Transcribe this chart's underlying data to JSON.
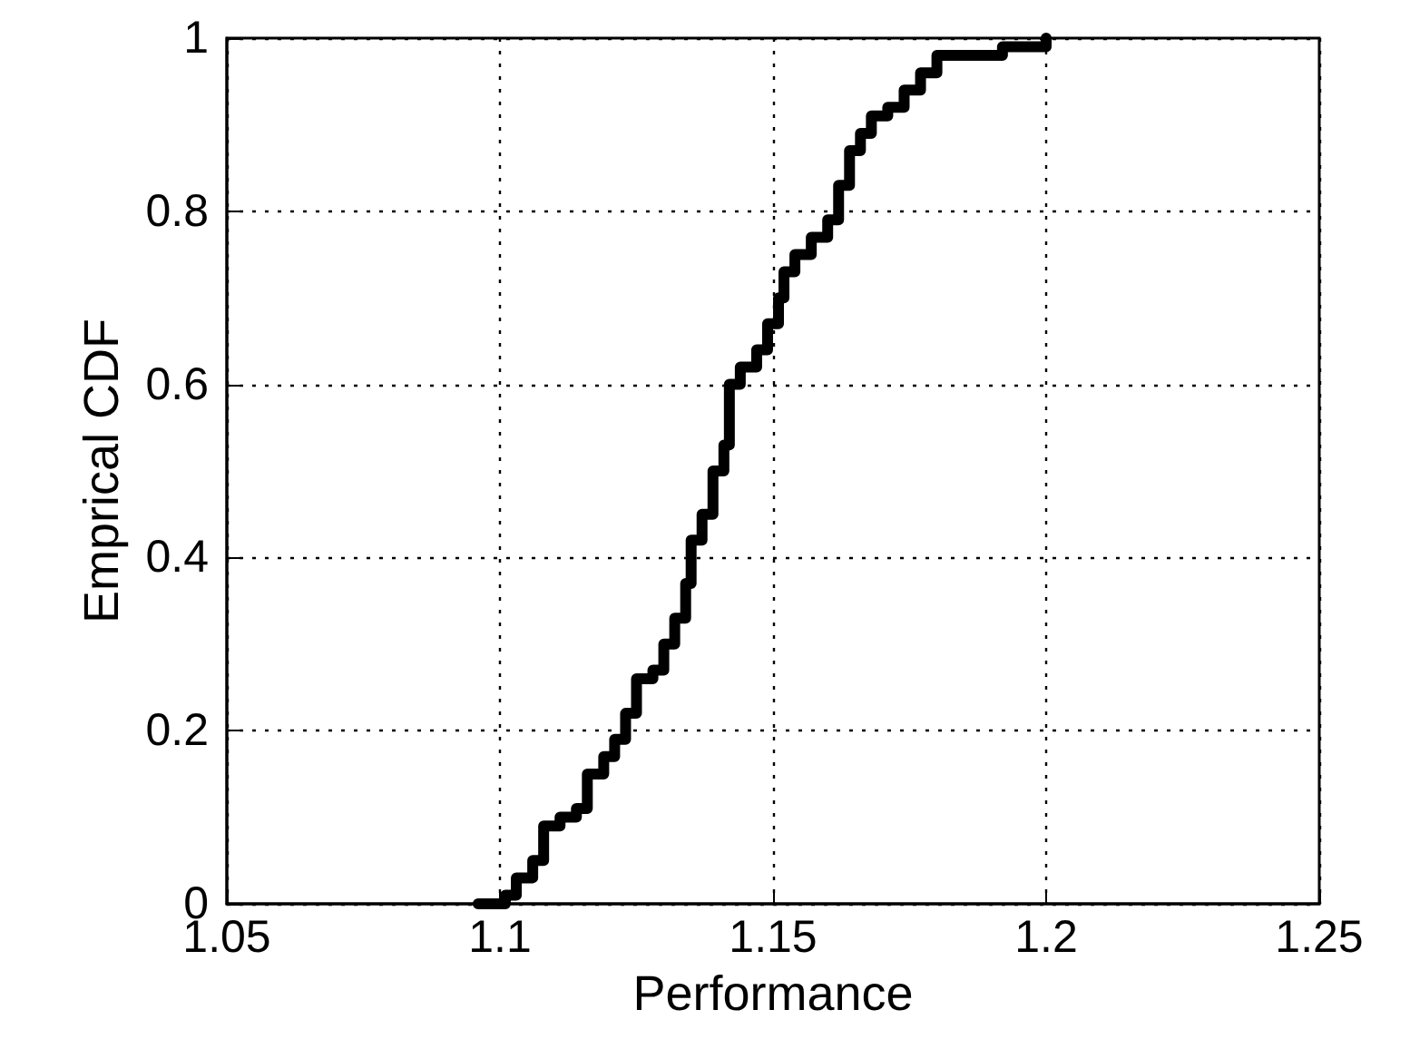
{
  "chart_data": {
    "type": "step",
    "xlabel": "Performance",
    "ylabel": "Emprical CDF",
    "x": [
      1.096,
      1.101,
      1.103,
      1.106,
      1.108,
      1.111,
      1.114,
      1.116,
      1.119,
      1.121,
      1.123,
      1.125,
      1.128,
      1.13,
      1.132,
      1.134,
      1.135,
      1.137,
      1.139,
      1.141,
      1.142,
      1.144,
      1.147,
      1.149,
      1.151,
      1.152,
      1.154,
      1.157,
      1.16,
      1.162,
      1.164,
      1.166,
      1.168,
      1.171,
      1.174,
      1.177,
      1.18,
      1.19,
      1.192,
      1.198,
      1.2
    ],
    "series": [
      {
        "color": "#000000",
        "values": [
          0,
          0.01,
          0.03,
          0.05,
          0.09,
          0.1,
          0.11,
          0.15,
          0.17,
          0.19,
          0.22,
          0.26,
          0.27,
          0.3,
          0.33,
          0.37,
          0.42,
          0.45,
          0.5,
          0.53,
          0.6,
          0.62,
          0.64,
          0.67,
          0.7,
          0.73,
          0.75,
          0.77,
          0.79,
          0.83,
          0.87,
          0.89,
          0.91,
          0.92,
          0.94,
          0.96,
          0.98,
          0.98,
          0.99,
          0.99,
          1.0
        ]
      }
    ],
    "xlim": [
      1.05,
      1.25
    ],
    "xticks": [
      1.05,
      1.1,
      1.15,
      1.2,
      1.25
    ],
    "ylim": [
      0,
      1
    ],
    "yticks": [
      0,
      0.2,
      0.4,
      0.6,
      0.8,
      1
    ],
    "grid": true,
    "legend": false,
    "line_style": "solid",
    "marker": "none"
  }
}
